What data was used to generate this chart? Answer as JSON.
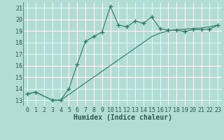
{
  "xlabel": "Humidex (Indice chaleur)",
  "bg_color": "#b2ddd4",
  "grid_color": "#c8e8e0",
  "line_color": "#2a7a65",
  "xlim": [
    -0.5,
    23.5
  ],
  "ylim": [
    12.5,
    21.5
  ],
  "yticks": [
    13,
    14,
    15,
    16,
    17,
    18,
    19,
    20,
    21
  ],
  "xticks": [
    0,
    1,
    2,
    3,
    4,
    5,
    6,
    7,
    8,
    9,
    10,
    11,
    12,
    13,
    14,
    15,
    16,
    17,
    18,
    19,
    20,
    21,
    22,
    23
  ],
  "line1_x": [
    0,
    1,
    3,
    4,
    5,
    6,
    7,
    8,
    9,
    10,
    11,
    12,
    13,
    14,
    15,
    16,
    17,
    18,
    19,
    20,
    21,
    22,
    23
  ],
  "line1_y": [
    13.55,
    13.7,
    13.0,
    13.0,
    14.0,
    16.1,
    18.1,
    18.5,
    18.9,
    21.1,
    19.5,
    19.35,
    19.85,
    19.65,
    20.2,
    19.2,
    19.05,
    19.05,
    18.95,
    19.1,
    19.1,
    19.15,
    19.5
  ],
  "line2_x": [
    0,
    1,
    3,
    4,
    5,
    6,
    7,
    8,
    9,
    10,
    11,
    12,
    13,
    14,
    15,
    16,
    17,
    18,
    19,
    20,
    21,
    22,
    23
  ],
  "line2_y": [
    13.55,
    13.7,
    13.0,
    13.0,
    13.5,
    14.0,
    14.5,
    15.0,
    15.5,
    16.0,
    16.5,
    17.0,
    17.5,
    18.0,
    18.5,
    18.8,
    19.0,
    19.1,
    19.15,
    19.2,
    19.25,
    19.35,
    19.5
  ],
  "marker": "+",
  "marker_size": 4,
  "marker_lw": 1.0,
  "line_width": 0.8,
  "tick_fontsize": 6.0,
  "xlabel_fontsize": 7.0
}
